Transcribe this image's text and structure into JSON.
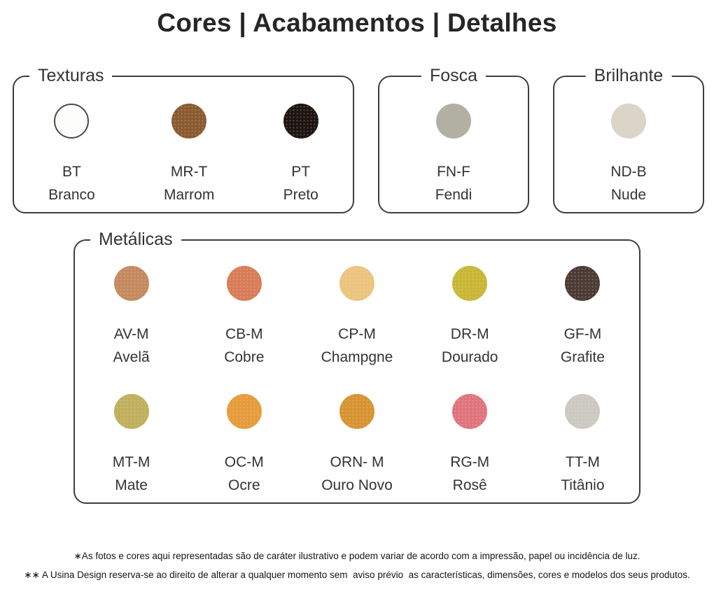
{
  "title": "Cores | Acabamentos | Detalhes",
  "groups": [
    {
      "label": "Texturas",
      "swatches": [
        {
          "code": "BT",
          "name": "Branco",
          "color": "#FDFDFB",
          "ring": "#4A4A4A"
        },
        {
          "code": "MR-T",
          "name": "Marrom",
          "color": "#8A5A2E"
        },
        {
          "code": "PT",
          "name": "Preto",
          "color": "#1D1310"
        }
      ]
    },
    {
      "label": "Fosca",
      "swatches": [
        {
          "code": "FN-F",
          "name": "Fendi",
          "color": "#B1B0A2"
        }
      ]
    },
    {
      "label": "Brilhante",
      "swatches": [
        {
          "code": "ND-B",
          "name": "Nude",
          "color": "#DBD5C8"
        }
      ]
    },
    {
      "label": "Metálicas",
      "swatches": [
        {
          "code": "AV-M",
          "name": "Avelã",
          "color": "#C5895E"
        },
        {
          "code": "CB-M",
          "name": "Cobre",
          "color": "#D87C55"
        },
        {
          "code": "CP-M",
          "name": "Champgne",
          "color": "#ECC47C"
        },
        {
          "code": "DR-M",
          "name": "Dourado",
          "color": "#C9B733"
        },
        {
          "code": "GF-M",
          "name": "Grafite",
          "color": "#4B3A33"
        },
        {
          "code": "MT-M",
          "name": "Mate",
          "color": "#C0AF5C"
        },
        {
          "code": "OC-M",
          "name": "Ocre",
          "color": "#E79B38"
        },
        {
          "code": "ORN- M",
          "name": "Ouro Novo",
          "color": "#D8932F"
        },
        {
          "code": "RG-M",
          "name": "Rosê",
          "color": "#E0737B"
        },
        {
          "code": "TT-M",
          "name": "Titânio",
          "color": "#CCC9C0"
        }
      ]
    }
  ],
  "footer": {
    "line1": "∗As fotos e cores aqui representadas são de caráter ilustrativo e podem variar de acordo com a impressão, papel ou incidência de luz.",
    "line2": "∗∗ A Usina Design reserva-se ao direito de alterar a qualquer momento sem  aviso prévio  as características, dimensões, cores e modelos dos seus produtos."
  }
}
